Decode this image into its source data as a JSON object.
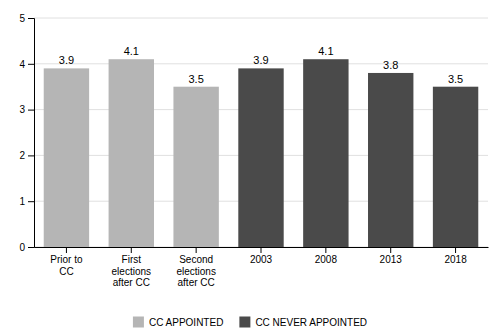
{
  "chart_data": {
    "type": "bar",
    "categories": [
      "Prior to\nCC",
      "First\nelections\nafter CC",
      "Second\nelections\nafter CC",
      "2003",
      "2008",
      "2013",
      "2018"
    ],
    "series": [
      {
        "name": "CC APPOINTED",
        "color": "#b5b5b5",
        "values": [
          3.9,
          4.1,
          3.5,
          null,
          null,
          null,
          null
        ]
      },
      {
        "name": "CC NEVER APPOINTED",
        "color": "#4a4a4a",
        "values": [
          null,
          null,
          null,
          3.9,
          4.1,
          3.8,
          3.5
        ]
      }
    ],
    "ylim": [
      0,
      5
    ],
    "yticks": [
      0,
      1,
      2,
      3,
      4,
      5
    ],
    "grid": true,
    "data_labels": true,
    "legend": "bottom"
  }
}
